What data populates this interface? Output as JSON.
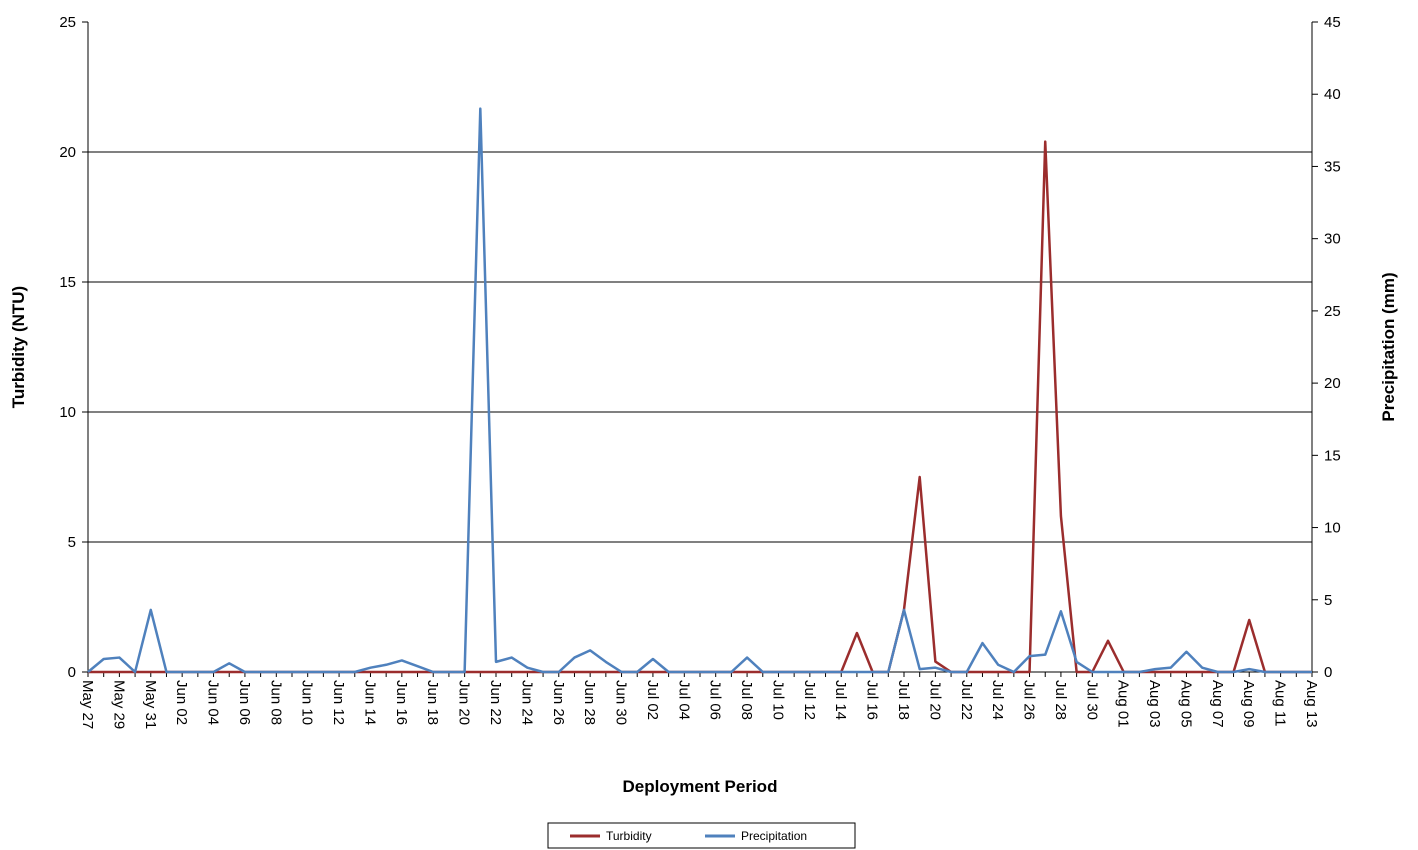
{
  "chart_data": {
    "type": "line",
    "x_label": "Deployment Period",
    "y_label": "Turbidity (NTU)",
    "y2_label": "Precipitation (mm)",
    "categories": [
      "May 27",
      null,
      "May 29",
      null,
      "May 31",
      null,
      "Jun 02",
      null,
      "Jun 04",
      null,
      "Jun 06",
      null,
      "Jun 08",
      null,
      "Jun 10",
      null,
      "Jun 12",
      null,
      "Jun 14",
      null,
      "Jun 16",
      null,
      "Jun 18",
      null,
      "Jun 20",
      null,
      "Jun 22",
      null,
      "Jun 24",
      null,
      "Jun 26",
      null,
      "Jun 28",
      null,
      "Jun 30",
      null,
      "Jul 02",
      null,
      "Jul 04",
      null,
      "Jul 06",
      null,
      "Jul 08",
      null,
      "Jul 10",
      null,
      "Jul 12",
      null,
      "Jul 14",
      null,
      "Jul 16",
      null,
      "Jul 18",
      null,
      "Jul 20",
      null,
      "Jul 22",
      null,
      "Jul 24",
      null,
      "Jul 26",
      null,
      "Jul 28",
      null,
      "Jul 30",
      null,
      "Aug 01",
      null,
      "Aug 03",
      null,
      "Aug 05",
      null,
      "Aug 07",
      null,
      "Aug 09",
      null,
      "Aug 11",
      null,
      "Aug 13"
    ],
    "series": [
      {
        "name": "Turbidity",
        "color": "#9b2d2d",
        "axis": "y",
        "values": [
          0,
          0,
          0,
          0,
          0,
          0,
          0,
          0,
          0,
          0,
          0,
          0,
          0,
          0,
          0,
          0,
          0,
          0,
          0,
          0,
          0,
          0,
          0,
          0,
          0,
          0,
          0,
          0,
          0,
          0,
          0,
          0,
          0,
          0,
          0,
          0,
          0,
          0,
          0,
          0,
          0,
          0,
          0,
          0,
          0,
          0,
          0,
          0,
          0,
          1.5,
          0,
          0,
          2.4,
          7.5,
          0.4,
          0,
          0,
          0,
          0,
          0,
          0,
          20.4,
          6.0,
          0,
          0,
          1.2,
          0,
          0,
          0,
          0,
          0,
          0,
          0,
          0,
          2.0,
          0,
          0,
          0,
          0
        ]
      },
      {
        "name": "Precipitation",
        "color": "#4f81bd",
        "axis": "y2",
        "values": [
          0,
          0.9,
          1.0,
          0,
          4.3,
          0,
          0,
          0,
          0,
          0.6,
          0,
          0,
          0,
          0,
          0,
          0,
          0,
          0,
          0.3,
          0.5,
          0.8,
          0.4,
          0,
          0,
          0,
          39,
          0.7,
          1.0,
          0.3,
          0,
          0,
          1.0,
          1.5,
          0.7,
          0,
          0,
          0.9,
          0,
          0,
          0,
          0,
          0,
          1.0,
          0,
          0,
          0,
          0,
          0,
          0,
          0,
          0,
          0,
          4.3,
          0.2,
          0.3,
          0,
          0,
          2.0,
          0.5,
          0,
          1.1,
          1.2,
          4.2,
          0.7,
          0,
          0,
          0,
          0,
          0.2,
          0.3,
          1.4,
          0.3,
          0,
          0,
          0.2,
          0,
          0,
          0,
          0
        ]
      }
    ],
    "ylim": [
      0,
      25
    ],
    "yticks": [
      0,
      5,
      10,
      15,
      20,
      25
    ],
    "y2lim": [
      0,
      45
    ],
    "y2ticks": [
      0,
      5,
      10,
      15,
      20,
      25,
      30,
      35,
      40,
      45
    ],
    "grid": true,
    "legend": "bottom"
  }
}
